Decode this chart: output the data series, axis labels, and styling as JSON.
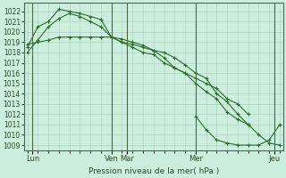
{
  "bg_color": "#cceedd",
  "grid_color": "#aaccbb",
  "line_color": "#2d6a2d",
  "marker_color": "#2d6a2d",
  "xlabel_text": "Pression niveau de la mer( hPa )",
  "ylim": [
    1008.5,
    1022.8
  ],
  "yticks": [
    1009,
    1010,
    1011,
    1012,
    1013,
    1014,
    1015,
    1016,
    1017,
    1018,
    1019,
    1020,
    1021,
    1022
  ],
  "xlim": [
    -0.3,
    24.3
  ],
  "xtick_labels": [
    "Lun",
    "Ven",
    "Mar",
    "Mer",
    "Jeu"
  ],
  "xtick_positions": [
    0.5,
    8,
    9.5,
    16,
    23.5
  ],
  "vline_positions": [
    0.5,
    8,
    9.5,
    16,
    23.5
  ],
  "series1_x": [
    0,
    1,
    2,
    3,
    4,
    5,
    6,
    7,
    8,
    9,
    10,
    11,
    12,
    13,
    14,
    15,
    16,
    17,
    18,
    19,
    20,
    21,
    22,
    23,
    24
  ],
  "series1_y": [
    1018.0,
    1019.2,
    1020.5,
    1021.3,
    1021.8,
    1021.5,
    1021.0,
    1020.5,
    1019.5,
    1019.3,
    1019.0,
    1018.7,
    1018.2,
    1017.5,
    1016.5,
    1016.0,
    1015.5,
    1015.0,
    1014.5,
    1013.5,
    1013.0,
    1012.0,
    null,
    null,
    null
  ],
  "series2_x": [
    0,
    1,
    2,
    3,
    4,
    5,
    6,
    7,
    8,
    9,
    10,
    11,
    12,
    13,
    14,
    15,
    16,
    17,
    18,
    19,
    20,
    21,
    22,
    23,
    24
  ],
  "series2_y": [
    1018.5,
    1020.5,
    1021.0,
    1022.2,
    1022.0,
    1021.8,
    1021.5,
    1021.2,
    1019.5,
    1019.0,
    1018.8,
    1018.5,
    1018.2,
    1018.0,
    1017.5,
    1016.8,
    1016.0,
    1015.5,
    1014.0,
    1013.2,
    1012.0,
    1011.0,
    null,
    null,
    null
  ],
  "series3_x": [
    0,
    1,
    2,
    3,
    4,
    5,
    6,
    7,
    8,
    9,
    10,
    11,
    12,
    13,
    14,
    15,
    16,
    17,
    18,
    19,
    20,
    21,
    22,
    23,
    24
  ],
  "series3_y": [
    1018.8,
    1019.0,
    1019.2,
    1019.5,
    1019.5,
    1019.5,
    1019.5,
    1019.5,
    1019.5,
    1019.0,
    1018.5,
    1018.0,
    1017.8,
    1017.0,
    1016.5,
    1016.0,
    1015.0,
    1014.2,
    1013.5,
    1012.2,
    1011.5,
    1011.0,
    1010.0,
    1009.2,
    1009.0
  ],
  "series4_x": [
    0,
    1,
    2,
    3,
    4,
    5,
    6,
    7,
    8,
    9,
    10,
    11,
    12,
    13,
    14,
    15,
    16,
    17,
    18,
    19,
    20,
    21,
    22,
    23,
    24
  ],
  "series4_y": [
    null,
    null,
    null,
    null,
    null,
    null,
    null,
    null,
    null,
    null,
    null,
    null,
    null,
    null,
    null,
    null,
    1011.8,
    1010.5,
    1009.5,
    1009.2,
    1009.0,
    1009.0,
    1009.0,
    1009.5,
    1011.0
  ]
}
